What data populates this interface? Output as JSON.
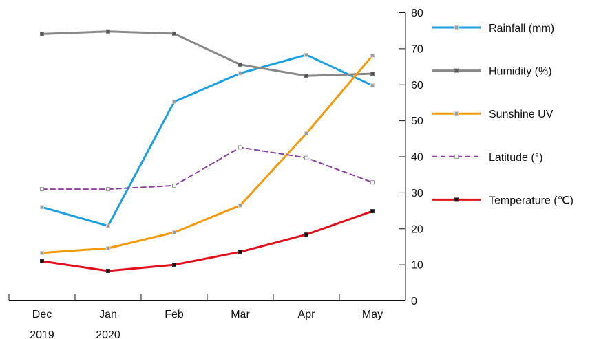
{
  "chart_data": {
    "type": "line",
    "categories": [
      "Dec",
      "Jan",
      "Feb",
      "Mar",
      "Apr",
      "May"
    ],
    "category_sublabels": [
      "2019",
      "2020",
      "",
      "",
      "",
      ""
    ],
    "ylim": [
      0,
      80
    ],
    "yticks": [
      0,
      10,
      20,
      30,
      40,
      50,
      60,
      70,
      80
    ],
    "y_axis_position": "right",
    "grid": false,
    "legend_placement": "right",
    "series": [
      {
        "name": "Rainfall (mm)",
        "color": "#1a9fe0",
        "style": "solid",
        "marker": "gray-square",
        "values": [
          26,
          20.8,
          55.3,
          63.2,
          68.3,
          59.8
        ]
      },
      {
        "name": "Humidity (%)",
        "color": "#888888",
        "style": "solid",
        "marker": "dark-square",
        "values": [
          74.1,
          74.8,
          74.2,
          65.6,
          62.5,
          63.1
        ]
      },
      {
        "name": "Sunshine UV",
        "color": "#f59a0c",
        "style": "solid",
        "marker": "gray-square",
        "values": [
          13.3,
          14.6,
          19.0,
          26.5,
          46.5,
          68.1
        ]
      },
      {
        "name": "Latitude (°)",
        "color": "#8b3fa0",
        "style": "dashed",
        "marker": "hollow-square",
        "values": [
          31.0,
          31.0,
          32.0,
          42.6,
          39.7,
          32.9
        ]
      },
      {
        "name": "Temperature (℃)",
        "color": "#e0101c",
        "style": "solid",
        "marker": "black-square",
        "values": [
          11.0,
          8.3,
          10.0,
          13.6,
          18.4,
          24.9
        ]
      }
    ]
  }
}
